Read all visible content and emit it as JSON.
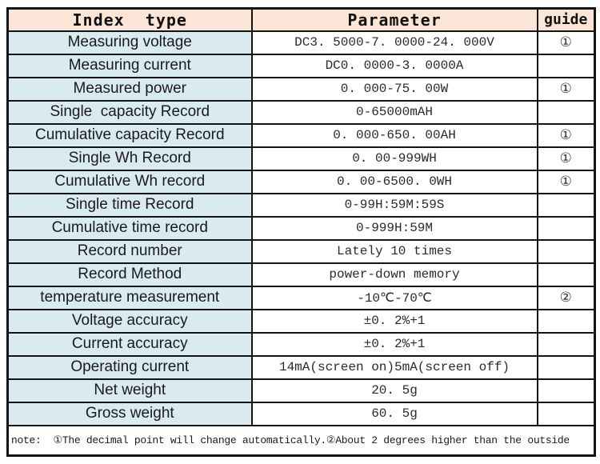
{
  "table": {
    "headers": {
      "index_type": "Index  type",
      "parameter": "Parameter",
      "guide": "guide"
    },
    "rows": [
      {
        "index": "Measuring voltage",
        "parameter": "DC3. 5000-7. 0000-24. 000V",
        "guide": "①"
      },
      {
        "index": "Measuring current",
        "parameter": "DC0. 0000-3. 0000A",
        "guide": ""
      },
      {
        "index": "Measured power",
        "parameter": "0. 000-75. 00W",
        "guide": "①"
      },
      {
        "index": "Single  capacity Record",
        "parameter": "0-65000mAH",
        "guide": ""
      },
      {
        "index": "Cumulative capacity Record",
        "parameter": "0. 000-650. 00AH",
        "guide": "①"
      },
      {
        "index": "Single Wh Record",
        "parameter": "0. 00-999WH",
        "guide": "①"
      },
      {
        "index": "Cumulative Wh record",
        "parameter": "0. 00-6500. 0WH",
        "guide": "①"
      },
      {
        "index": "Single time Record",
        "parameter": "0-99H:59M:59S",
        "guide": ""
      },
      {
        "index": "Cumulative time record",
        "parameter": "0-999H:59M",
        "guide": ""
      },
      {
        "index": "Record number",
        "parameter": "Lately 10 times",
        "guide": ""
      },
      {
        "index": "Record Method",
        "parameter": "power-down memory",
        "guide": ""
      },
      {
        "index": "temperature measurement",
        "parameter": "-10℃-70℃",
        "guide": "②"
      },
      {
        "index": "Voltage accuracy",
        "parameter": "±0. 2%+1",
        "guide": ""
      },
      {
        "index": "Current accuracy",
        "parameter": "±0. 2%+1",
        "guide": ""
      },
      {
        "index": "Operating current",
        "parameter": "14mA(screen on)5mA(screen off)",
        "guide": ""
      },
      {
        "index": "Net weight",
        "parameter": "20. 5g",
        "guide": ""
      },
      {
        "index": "Gross weight",
        "parameter": "60. 5g",
        "guide": ""
      }
    ],
    "note": "note:  ①The decimal point will change automatically.②About 2 degrees higher than the outside"
  },
  "colors": {
    "header_bg": "#fbe5d6",
    "index_bg": "#daeaf1",
    "cell_bg": "#ffffff",
    "border": "#141414"
  }
}
